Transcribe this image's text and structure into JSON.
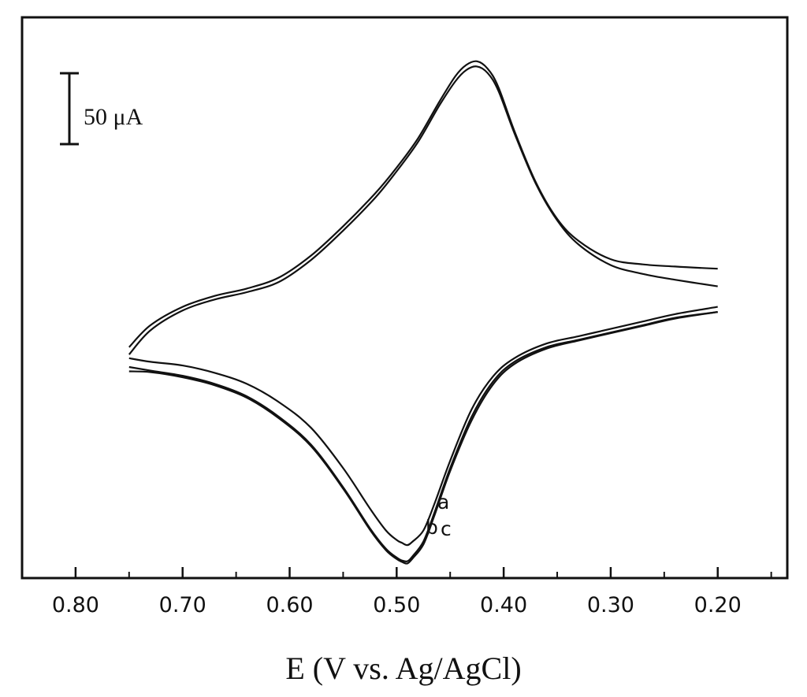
{
  "chart_data": {
    "type": "line",
    "title": "",
    "xlabel": "E (V vs. Ag/AgCl)",
    "ylabel": "",
    "x_reversed": true,
    "xlim": [
      0.85,
      0.135
    ],
    "ylim": [
      -5.6,
      2.05
    ],
    "x_ticks": [
      0.8,
      0.7,
      0.6,
      0.5,
      0.4,
      0.3,
      0.2
    ],
    "x_tick_labels": [
      "0.80",
      "0.70",
      "0.60",
      "0.50",
      "0.40",
      "0.30",
      "0.20"
    ],
    "x_minor_ticks": [
      0.75,
      0.65,
      0.55,
      0.45,
      0.35,
      0.25,
      0.15
    ],
    "grid": false,
    "scale_bar": {
      "label": "50 μA",
      "value_uA": 50
    },
    "curve_labels": [
      "a",
      "b",
      "c"
    ],
    "series": [
      {
        "x": [
          0.75,
          0.73,
          0.7,
          0.67,
          0.64,
          0.61,
          0.58,
          0.55,
          0.52,
          0.5,
          0.48,
          0.46,
          0.445,
          0.435,
          0.425,
          0.415,
          0.405,
          0.39,
          0.37,
          0.35,
          0.33,
          0.3,
          0.27,
          0.24,
          0.2
        ],
        "y": [
          -2.45,
          -2.15,
          -1.9,
          -1.75,
          -1.65,
          -1.5,
          -1.2,
          -0.8,
          -0.35,
          0.0,
          0.4,
          0.9,
          1.25,
          1.4,
          1.45,
          1.35,
          1.1,
          0.5,
          -0.2,
          -0.7,
          -1.0,
          -1.25,
          -1.32,
          -1.35,
          -1.38
        ]
      },
      {
        "x": [
          0.75,
          0.73,
          0.7,
          0.67,
          0.64,
          0.61,
          0.58,
          0.55,
          0.52,
          0.5,
          0.48,
          0.46,
          0.445,
          0.435,
          0.425,
          0.415,
          0.405,
          0.39,
          0.37,
          0.35,
          0.33,
          0.3,
          0.27,
          0.24,
          0.2
        ],
        "y": [
          -2.55,
          -2.22,
          -1.95,
          -1.8,
          -1.7,
          -1.56,
          -1.26,
          -0.86,
          -0.41,
          -0.05,
          0.35,
          0.85,
          1.18,
          1.33,
          1.38,
          1.29,
          1.05,
          0.47,
          -0.22,
          -0.72,
          -1.05,
          -1.33,
          -1.45,
          -1.53,
          -1.62
        ]
      },
      {
        "x": [
          0.2,
          0.24,
          0.27,
          0.3,
          0.33,
          0.36,
          0.39,
          0.41,
          0.43,
          0.45,
          0.465,
          0.475,
          0.485,
          0.49,
          0.495,
          0.5,
          0.51,
          0.525,
          0.55,
          0.58,
          0.61,
          0.64,
          0.67,
          0.7,
          0.73,
          0.75
        ],
        "y": [
          -1.9,
          -2.0,
          -2.1,
          -2.2,
          -2.3,
          -2.4,
          -2.6,
          -2.85,
          -3.3,
          -4.0,
          -4.6,
          -4.95,
          -5.1,
          -5.15,
          -5.12,
          -5.08,
          -4.95,
          -4.65,
          -4.1,
          -3.55,
          -3.2,
          -2.95,
          -2.8,
          -2.7,
          -2.65,
          -2.6
        ]
      },
      {
        "x": [
          0.2,
          0.24,
          0.27,
          0.3,
          0.33,
          0.36,
          0.39,
          0.41,
          0.43,
          0.45,
          0.465,
          0.475,
          0.485,
          0.49,
          0.495,
          0.5,
          0.51,
          0.525,
          0.55,
          0.58,
          0.61,
          0.64,
          0.67,
          0.7,
          0.73,
          0.75
        ],
        "y": [
          -1.97,
          -2.05,
          -2.15,
          -2.25,
          -2.35,
          -2.45,
          -2.65,
          -2.92,
          -3.4,
          -4.1,
          -4.72,
          -5.1,
          -5.3,
          -5.37,
          -5.36,
          -5.32,
          -5.2,
          -4.92,
          -4.36,
          -3.78,
          -3.4,
          -3.12,
          -2.95,
          -2.84,
          -2.77,
          -2.72
        ]
      },
      {
        "x": [
          0.2,
          0.24,
          0.27,
          0.3,
          0.33,
          0.36,
          0.39,
          0.41,
          0.43,
          0.45,
          0.465,
          0.475,
          0.485,
          0.49,
          0.495,
          0.5,
          0.51,
          0.525,
          0.55,
          0.58,
          0.61,
          0.64,
          0.67,
          0.7,
          0.73,
          0.75
        ],
        "y": [
          -1.97,
          -2.06,
          -2.16,
          -2.26,
          -2.36,
          -2.47,
          -2.68,
          -2.96,
          -3.45,
          -4.14,
          -4.76,
          -5.14,
          -5.33,
          -5.4,
          -5.38,
          -5.34,
          -5.22,
          -4.94,
          -4.38,
          -3.8,
          -3.42,
          -3.14,
          -2.97,
          -2.86,
          -2.79,
          -2.78
        ]
      }
    ],
    "colors": {
      "line": "#111111",
      "axis": "#111111",
      "background": "#ffffff"
    }
  }
}
